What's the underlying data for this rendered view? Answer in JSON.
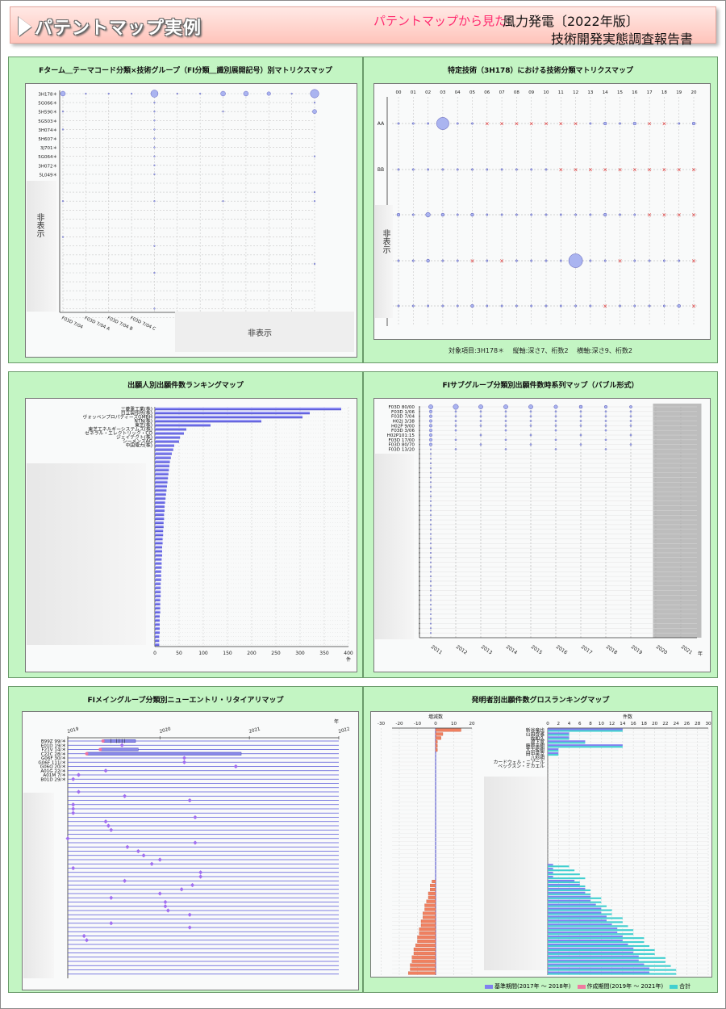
{
  "header": {
    "title": "パテントマップ実例",
    "kicker": "パテントマップから見た",
    "main": "風力発電〔2022年版〕",
    "sub": "技術開発実態調査報告書"
  },
  "panels": {
    "p1": {
      "title": "Fターム＿テーマコード分類×技術グループ（FI分類＿識別展開記号）別マトリクスマップ",
      "hidden_y": "非表示",
      "hidden_x": "非表示"
    },
    "p2": {
      "title": "特定技術（3H178）における技術分類マトリクスマップ",
      "hidden_y": "非表示",
      "footer": "対象項目:3H178＊　 縦軸:深さ7、桁数2　 横軸:深さ9、桁数2"
    },
    "p3": {
      "title": "出願人別出願件数ランキングマップ",
      "unit": "件"
    },
    "p4": {
      "title": "FIサブグループ分類別出願件数時系列マップ（バブル形式）",
      "unit": "年"
    },
    "p5": {
      "title": "FIメイングループ分類別ニューエントリ・リタイアリマップ",
      "unit": "年"
    },
    "p6": {
      "title": "発明者別出願件数グロスランキングマップ",
      "left_label": "増減数",
      "right_label": "件数",
      "legend": [
        "基準期間(2017年 ～ 2018年)",
        "作成期間(2019年 ～ 2021年)",
        "合計"
      ]
    }
  },
  "chart_data": [
    {
      "type": "scatter",
      "title": "Fターム＿テーマコード分類×技術グループ（FI分類＿識別展開記号）別マトリクスマップ",
      "y_categories": [
        "3H178＊",
        "5G066＊",
        "5H590＊",
        "5G503＊",
        "3H074＊",
        "5H607＊",
        "3J701＊",
        "5G064＊",
        "3H072＊",
        "5L049＊"
      ],
      "x_categories": [
        "F03D 7/04",
        "F03D 7/04 A",
        "F03D 7/04 B",
        "F03D 7/04 C"
      ],
      "bubbles_row0_relsize": [
        4,
        1,
        1,
        1,
        6,
        1,
        1,
        4,
        4,
        3,
        1,
        7
      ]
    },
    {
      "type": "scatter",
      "title": "特定技術（3H178）における技術分類マトリクスマップ",
      "x_categories": [
        "00",
        "01",
        "02",
        "03",
        "04",
        "05",
        "06",
        "07",
        "08",
        "09",
        "10",
        "11",
        "12",
        "13",
        "14",
        "15",
        "16",
        "17",
        "18",
        "19",
        "20"
      ],
      "y_categories": [
        "AA",
        "BB"
      ],
      "rows": [
        [
          1,
          0,
          1,
          8,
          1,
          1,
          "x",
          "x",
          "x",
          "x",
          "x",
          "x",
          "x",
          1,
          2,
          1,
          2,
          "x",
          "x",
          1,
          2
        ],
        [
          1,
          1,
          1,
          1,
          1,
          1,
          1,
          1,
          1,
          1,
          1,
          "x",
          "x",
          "x",
          "x",
          "x",
          "x",
          "x",
          "x",
          "x",
          "x"
        ],
        [
          2,
          1,
          3,
          2,
          1,
          2,
          1,
          1,
          1,
          1,
          1,
          1,
          1,
          1,
          2,
          1,
          1,
          "x",
          "x",
          "x",
          "x"
        ],
        [
          1,
          1,
          2,
          1,
          1,
          "x",
          1,
          "x",
          1,
          1,
          1,
          1,
          9,
          1,
          1,
          "x",
          1,
          1,
          1,
          1,
          "x"
        ],
        [
          1,
          1,
          1,
          1,
          1,
          2,
          1,
          1,
          1,
          1,
          1,
          1,
          1,
          1,
          "x",
          1,
          1,
          1,
          1,
          2,
          "x"
        ]
      ]
    },
    {
      "type": "bar",
      "title": "出願人別出願件数ランキングマップ",
      "categories": [
        "三菱重工業(株)",
        "日立製作所(株)",
        "ヴォッベンプロパティーズGMBH",
        "NTN(株)",
        "東芝(株)",
        "東芝エネルギーシステムズ(株)",
        "ゼネラル・エレクトリック・CO",
        "ジェイテクト(株)",
        "シーメンスAG",
        "中国電力(株)"
      ],
      "values": [
        385,
        320,
        305,
        220,
        115,
        65,
        60,
        52,
        50,
        40
      ],
      "other_values": [
        38,
        35,
        33,
        31,
        30,
        29,
        28,
        27,
        26,
        25,
        24,
        23,
        22,
        21,
        20,
        20,
        19,
        19,
        18,
        18,
        17,
        17,
        16,
        16,
        15,
        15,
        15,
        14,
        14,
        14,
        13,
        13,
        13,
        12,
        12,
        12,
        12,
        11,
        11,
        11,
        11,
        10,
        10,
        10,
        10,
        10,
        9,
        9,
        9
      ],
      "xlim": [
        0,
        400
      ],
      "xticks": [
        "0",
        "50",
        "100",
        "150",
        "200",
        "250",
        "300",
        "350",
        "400"
      ],
      "xlabel": "件"
    },
    {
      "type": "scatter",
      "title": "FIサブグループ分類別出願件数時系列マップ（バブル形式）",
      "row_labels": [
        "F03D 80/00",
        "F03D 1/06",
        "F03D 7/04",
        "H02J 3/38",
        "H02P 9/00",
        "F03D 3/06",
        "H02P101:15",
        "F03D 17/00",
        "F03D 80/70",
        "F03D 13/20"
      ],
      "x": [
        "2011",
        "2012",
        "2013",
        "2014",
        "2015",
        "2016",
        "2017",
        "2018",
        "2019",
        "2020",
        "2021"
      ],
      "xlabel": "年"
    },
    {
      "type": "scatter",
      "title": "FIメイングループ分類別ニューエントリ・リタイアリマップ",
      "row_labels": [
        "B99Z 99/＊",
        "E01D 19/＊",
        "F21V 14/＊",
        "C22C 28/＊",
        "G06F 30/＊",
        "G06F 111/＊",
        "G06Q 20/＊",
        "A01G 22/＊",
        "A01M 7/＊",
        "B01D 29/＊"
      ],
      "x": [
        "2019",
        "2020",
        "2021",
        "2022"
      ],
      "xlabel": "年"
    },
    {
      "type": "bar",
      "title": "発明者別出願件数グロスランキングマップ",
      "categories": [
        "新谷竜也",
        "山田啓雅",
        "坂和久",
        "渡下寛",
        "藤原英樹",
        "大古俊樹",
        "田中英幸",
        "八杉明",
        "カードウェル・ニアール",
        "ベックスン・ミカエル"
      ],
      "left_ticks": [
        "-30",
        "-20",
        "-10",
        "0",
        "10",
        "20"
      ],
      "right_ticks": [
        "0",
        "2",
        "4",
        "6",
        "8",
        "10",
        "12",
        "14",
        "16",
        "18",
        "20",
        "22",
        "24",
        "26",
        "28",
        "30"
      ],
      "left_label": "増減数",
      "right_label": "件数",
      "series": [
        {
          "name": "基準期間(2017年 ～ 2018年)",
          "color": "#8080f0"
        },
        {
          "name": "作成期間(2019年 ～ 2021年)",
          "color": "#f07aa0"
        },
        {
          "name": "合計",
          "color": "#40d0d0"
        }
      ]
    }
  ],
  "colors": {
    "panel_bg": "#c3f5c3",
    "bubble": "#aab4f0",
    "bar_blue": "#6f6fe6",
    "cross": "#e02020",
    "diamond": "#a070f0",
    "orange": "#f08060",
    "teal": "#40d0d0",
    "pink": "#f070a0"
  }
}
